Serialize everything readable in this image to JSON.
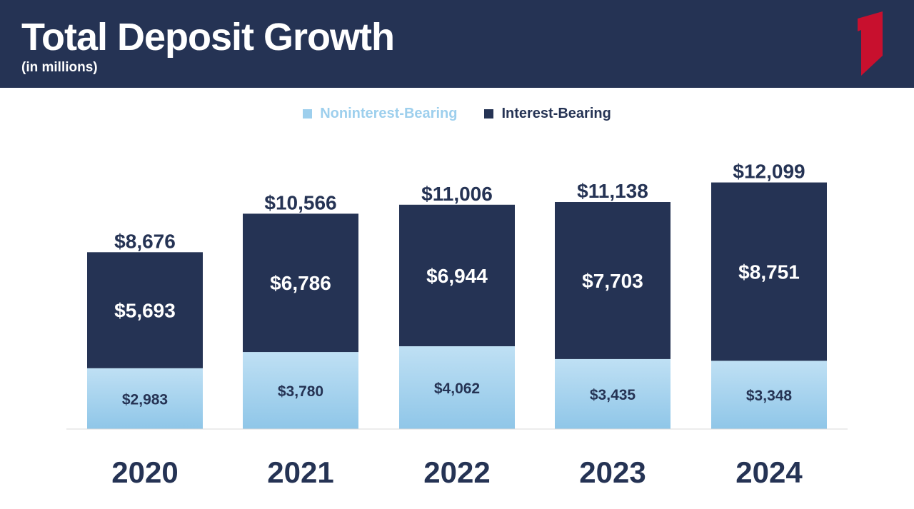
{
  "header": {
    "title": "Total Deposit Growth",
    "subtitle": "(in millions)"
  },
  "colors": {
    "header_bg": "#253354",
    "logo_red": "#c8102e",
    "interest_bearing": "#253354",
    "noninterest_top": "#bfe0f4",
    "noninterest_bottom": "#8fc6e8",
    "axis_line": "#d9d9d9"
  },
  "logo": {
    "icon": "brand-numeral-one-logo"
  },
  "chart_data": {
    "type": "bar",
    "stacked": true,
    "categories": [
      "2020",
      "2021",
      "2022",
      "2023",
      "2024"
    ],
    "series": [
      {
        "name": "Noninterest-Bearing",
        "values": [
          2983,
          3780,
          4062,
          3435,
          3348
        ],
        "labels": [
          "$2,983",
          "$3,780",
          "$4,062",
          "$3,435",
          "$3,348"
        ]
      },
      {
        "name": "Interest-Bearing",
        "values": [
          5693,
          6786,
          6944,
          7703,
          8751
        ],
        "labels": [
          "$5,693",
          "$6,786",
          "$6,944",
          "$7,703",
          "$8,751"
        ]
      }
    ],
    "totals": [
      8676,
      10566,
      11006,
      11138,
      12099
    ],
    "total_labels": [
      "$8,676",
      "$10,566",
      "$11,006",
      "$11,138",
      "$12,099"
    ],
    "ylim": [
      0,
      12500
    ],
    "grid": false,
    "legend_position": "top-center",
    "xlabel": "",
    "ylabel": ""
  }
}
